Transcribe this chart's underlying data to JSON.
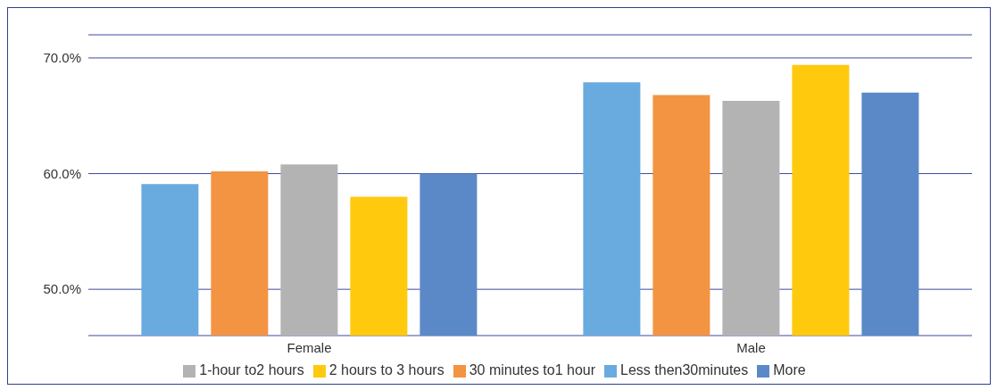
{
  "chart_data": {
    "type": "bar",
    "categories": [
      "Female",
      "Male"
    ],
    "series": [
      {
        "name": "Less then30minutes",
        "color": "#6aabdf",
        "values": [
          59.1,
          67.9
        ]
      },
      {
        "name": "30 minutes to1 hour",
        "color": "#f29442",
        "values": [
          60.2,
          66.8
        ]
      },
      {
        "name": "1-hour to2 hours",
        "color": "#b3b3b3",
        "values": [
          60.8,
          66.3
        ]
      },
      {
        "name": "2 hours to 3 hours",
        "color": "#ffc90e",
        "values": [
          58.0,
          69.4
        ]
      },
      {
        "name": "More",
        "color": "#5b89c8",
        "values": [
          60.0,
          67.0
        ]
      }
    ],
    "ylim": [
      46,
      72
    ],
    "yticks": [
      {
        "value": 50,
        "label": "50.0%"
      },
      {
        "value": 60,
        "label": "60.0%"
      },
      {
        "value": 70,
        "label": "70.0%"
      }
    ],
    "grid": "y",
    "legend": "bottom"
  }
}
